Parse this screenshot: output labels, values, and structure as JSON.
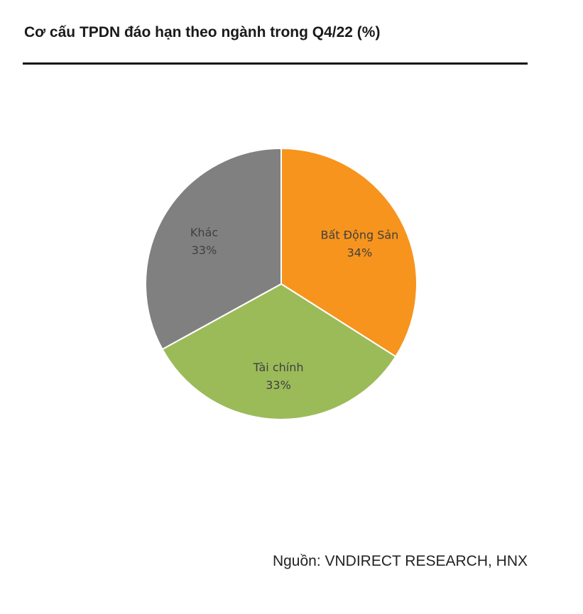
{
  "chart_data": {
    "type": "pie",
    "title": "Cơ cấu TPDN đáo hạn theo ngành trong Q4/22 (%)",
    "slices": [
      {
        "label": "Bất Động Sản",
        "value": 34,
        "value_label": "34%",
        "color": "#f7941d"
      },
      {
        "label": "Tài chính",
        "value": 33,
        "value_label": "33%",
        "color": "#9bbb59"
      },
      {
        "label": "Khác",
        "value": 33,
        "value_label": "33%",
        "color": "#808080"
      }
    ],
    "start_angle_deg": 0,
    "direction": "clockwise",
    "legend": "none"
  },
  "source": "Nguồn: VNDIRECT RESEARCH, HNX"
}
